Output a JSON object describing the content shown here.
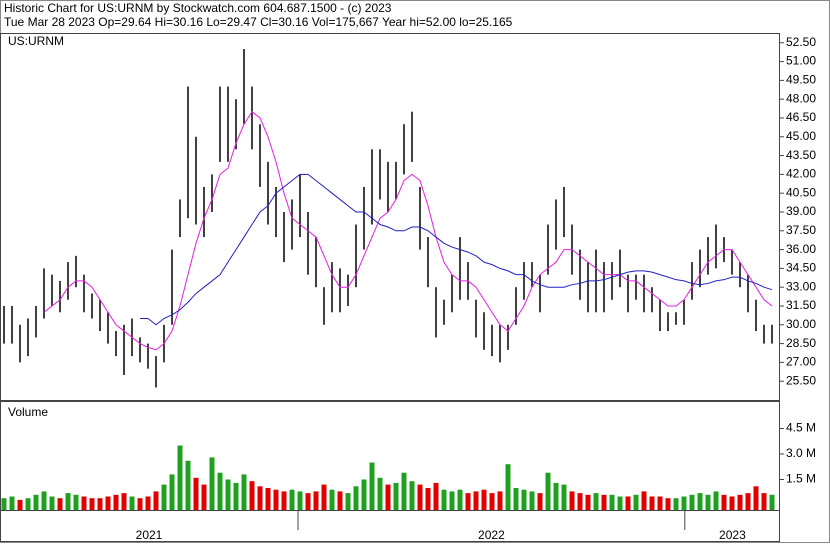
{
  "header": {
    "line1": "Historic Chart for US:URNM by Stockwatch.com 604.687.1500 - (c) 2023",
    "line2": "Tue Mar 28 2023  Op=29.64  Hi=30.16  Lo=29.47  Cl=30.16  Vol=175,667  Year hi=52.00  lo=25.165"
  },
  "chart_data": [
    {
      "type": "hilo",
      "title": "US:URNM",
      "high": [
        31.5,
        31.5,
        30,
        30.5,
        31.5,
        34.5,
        34,
        33.5,
        35,
        35.5,
        34,
        32.5,
        32,
        31,
        29.5,
        30,
        30.5,
        29,
        28.5,
        27.5,
        30,
        36,
        40,
        49,
        45,
        41,
        42,
        49,
        49,
        48,
        52,
        49,
        46,
        43,
        41,
        39,
        40,
        42,
        39,
        37,
        33,
        35,
        34.5,
        34,
        38,
        41,
        44,
        44,
        43,
        43,
        46,
        47,
        41,
        37,
        33,
        32,
        34,
        37,
        35,
        32,
        31,
        30,
        30,
        30,
        33,
        35,
        35,
        34,
        38,
        40,
        41,
        38,
        36,
        35,
        36,
        35,
        35,
        36,
        34,
        34,
        34,
        33,
        32,
        31,
        31,
        32,
        35,
        36,
        37,
        38,
        37,
        36,
        35,
        34,
        32,
        30,
        30
      ],
      "low": [
        28.5,
        28.5,
        27,
        27.5,
        29,
        30.5,
        31.5,
        31,
        32,
        33,
        31,
        30.5,
        29.5,
        28.5,
        27.5,
        26,
        27.5,
        27,
        26.5,
        25,
        27,
        30,
        37,
        38.5,
        38,
        37,
        39,
        43,
        43,
        44,
        46,
        44,
        41,
        38,
        37,
        35,
        36,
        37,
        34,
        33,
        30,
        31,
        31,
        31.5,
        33,
        36,
        38,
        40,
        39,
        40,
        42,
        43,
        36,
        33,
        29,
        30,
        31,
        32,
        32,
        29,
        28,
        27.5,
        27,
        28,
        30,
        32,
        33,
        31,
        34,
        36,
        37,
        34,
        32,
        31,
        31,
        31,
        32,
        33,
        31,
        32,
        31,
        31,
        29.5,
        29.5,
        30,
        30,
        32,
        33,
        34,
        34.5,
        35,
        34,
        33,
        31,
        29.5,
        28.5,
        28.5
      ],
      "series": [
        {
          "name": "short average",
          "color": "#e020e0",
          "values": [
            null,
            null,
            null,
            null,
            null,
            31,
            31.5,
            32,
            33,
            33.5,
            33.5,
            33,
            32,
            31,
            30,
            29.5,
            29,
            28.5,
            28.2,
            28,
            28.5,
            29.5,
            31.5,
            34,
            36.5,
            38.5,
            40,
            42,
            42.5,
            44.5,
            46,
            47,
            46.5,
            45,
            43,
            40.5,
            38.5,
            38,
            37.5,
            37,
            35.5,
            34,
            33,
            33,
            34,
            35.5,
            37,
            38.5,
            39,
            40,
            41.5,
            42,
            41.5,
            39.5,
            37,
            35,
            34,
            33.5,
            33.5,
            33,
            32,
            31,
            30,
            29.5,
            30.5,
            31.5,
            33,
            34,
            34.5,
            35,
            36,
            36,
            35.5,
            35,
            34.5,
            34,
            34,
            34,
            33.5,
            33.5,
            33,
            32.5,
            32,
            31.5,
            31.5,
            32,
            33,
            34,
            35,
            35.5,
            36,
            36,
            35,
            34,
            33,
            32,
            31.5
          ]
        },
        {
          "name": "long average",
          "color": "#2020c0",
          "values": [
            null,
            null,
            null,
            null,
            null,
            null,
            null,
            null,
            null,
            null,
            null,
            null,
            null,
            null,
            null,
            null,
            null,
            30.5,
            30.5,
            30,
            30.5,
            30.8,
            31.2,
            31.8,
            32.5,
            33,
            33.5,
            34,
            35,
            36,
            37,
            38,
            39,
            39.5,
            40.5,
            41,
            41.5,
            42,
            42,
            41.5,
            41,
            40.5,
            40,
            39.5,
            39,
            39,
            38.5,
            38,
            37.8,
            37.5,
            37.5,
            37.8,
            37.8,
            37.5,
            37,
            36.5,
            36.2,
            36,
            35.8,
            35.5,
            35,
            34.8,
            34.5,
            34.3,
            34,
            34,
            33.5,
            33.2,
            33,
            33,
            33,
            33.2,
            33.3,
            33.5,
            33.5,
            33.6,
            33.8,
            34,
            34.2,
            34.3,
            34.3,
            34.2,
            34,
            33.8,
            33.6,
            33.5,
            33.3,
            33.2,
            33.3,
            33.5,
            33.6,
            33.8,
            33.8,
            33.5,
            33.3,
            33,
            32.8
          ]
        }
      ],
      "bar_color": "#000000",
      "ylim": [
        24,
        53.2
      ],
      "yticks": [
        {
          "value": 52.5,
          "label": "52.50"
        },
        {
          "value": 51,
          "label": "51.00"
        },
        {
          "value": 49.5,
          "label": "49.50"
        },
        {
          "value": 48,
          "label": "48.00"
        },
        {
          "value": 46.5,
          "label": "46.50"
        },
        {
          "value": 45,
          "label": "45.00"
        },
        {
          "value": 43.5,
          "label": "43.50"
        },
        {
          "value": 42,
          "label": "42.00"
        },
        {
          "value": 40.5,
          "label": "40.50"
        },
        {
          "value": 39,
          "label": "39.00"
        },
        {
          "value": 37.5,
          "label": "37.50"
        },
        {
          "value": 36,
          "label": "36.00"
        },
        {
          "value": 34.5,
          "label": "34.50"
        },
        {
          "value": 33,
          "label": "33.00"
        },
        {
          "value": 31.5,
          "label": "31.50"
        },
        {
          "value": 30,
          "label": "30.00"
        },
        {
          "value": 28.5,
          "label": "28.50"
        },
        {
          "value": 27,
          "label": "27.00"
        },
        {
          "value": 25.5,
          "label": "25.50"
        }
      ]
    },
    {
      "type": "volume",
      "title": "Volume",
      "values": [
        0.4,
        0.5,
        0.3,
        0.4,
        0.6,
        0.8,
        0.5,
        0.4,
        0.7,
        0.6,
        0.5,
        0.4,
        0.4,
        0.5,
        0.6,
        0.7,
        0.5,
        0.4,
        0.5,
        0.8,
        1.2,
        1.8,
        3.5,
        2.6,
        1.6,
        1.2,
        2.8,
        1.9,
        1.5,
        1.3,
        1.8,
        1.4,
        1.1,
        1.0,
        0.9,
        0.8,
        0.9,
        0.8,
        0.7,
        0.8,
        1.2,
        0.9,
        0.8,
        0.7,
        1.1,
        1.5,
        2.5,
        1.6,
        1.2,
        1.3,
        1.9,
        1.4,
        1.2,
        1.0,
        1.3,
        0.9,
        0.8,
        0.9,
        0.7,
        0.8,
        0.9,
        0.7,
        0.8,
        2.4,
        1.0,
        0.9,
        0.8,
        0.7,
        1.9,
        1.3,
        1.2,
        0.8,
        0.7,
        0.6,
        0.7,
        0.6,
        0.6,
        0.5,
        0.5,
        0.6,
        0.8,
        0.5,
        0.5,
        0.4,
        0.4,
        0.5,
        0.6,
        0.7,
        0.6,
        0.8,
        0.6,
        0.5,
        0.6,
        0.7,
        1.1,
        0.7,
        0.6
      ],
      "up_color": "#20a020",
      "down_color": "#e00000",
      "ylim": [
        0,
        6
      ],
      "yticks": [
        {
          "value": 4.5,
          "label": "4.5 M"
        },
        {
          "value": 3,
          "label": "3.0 M"
        },
        {
          "value": 1.5,
          "label": "1.5 M"
        }
      ]
    }
  ],
  "x_axis": {
    "year_labels": [
      "2021",
      "2022",
      "2023"
    ],
    "year_breaks": [
      36.75,
      85.1
    ]
  }
}
